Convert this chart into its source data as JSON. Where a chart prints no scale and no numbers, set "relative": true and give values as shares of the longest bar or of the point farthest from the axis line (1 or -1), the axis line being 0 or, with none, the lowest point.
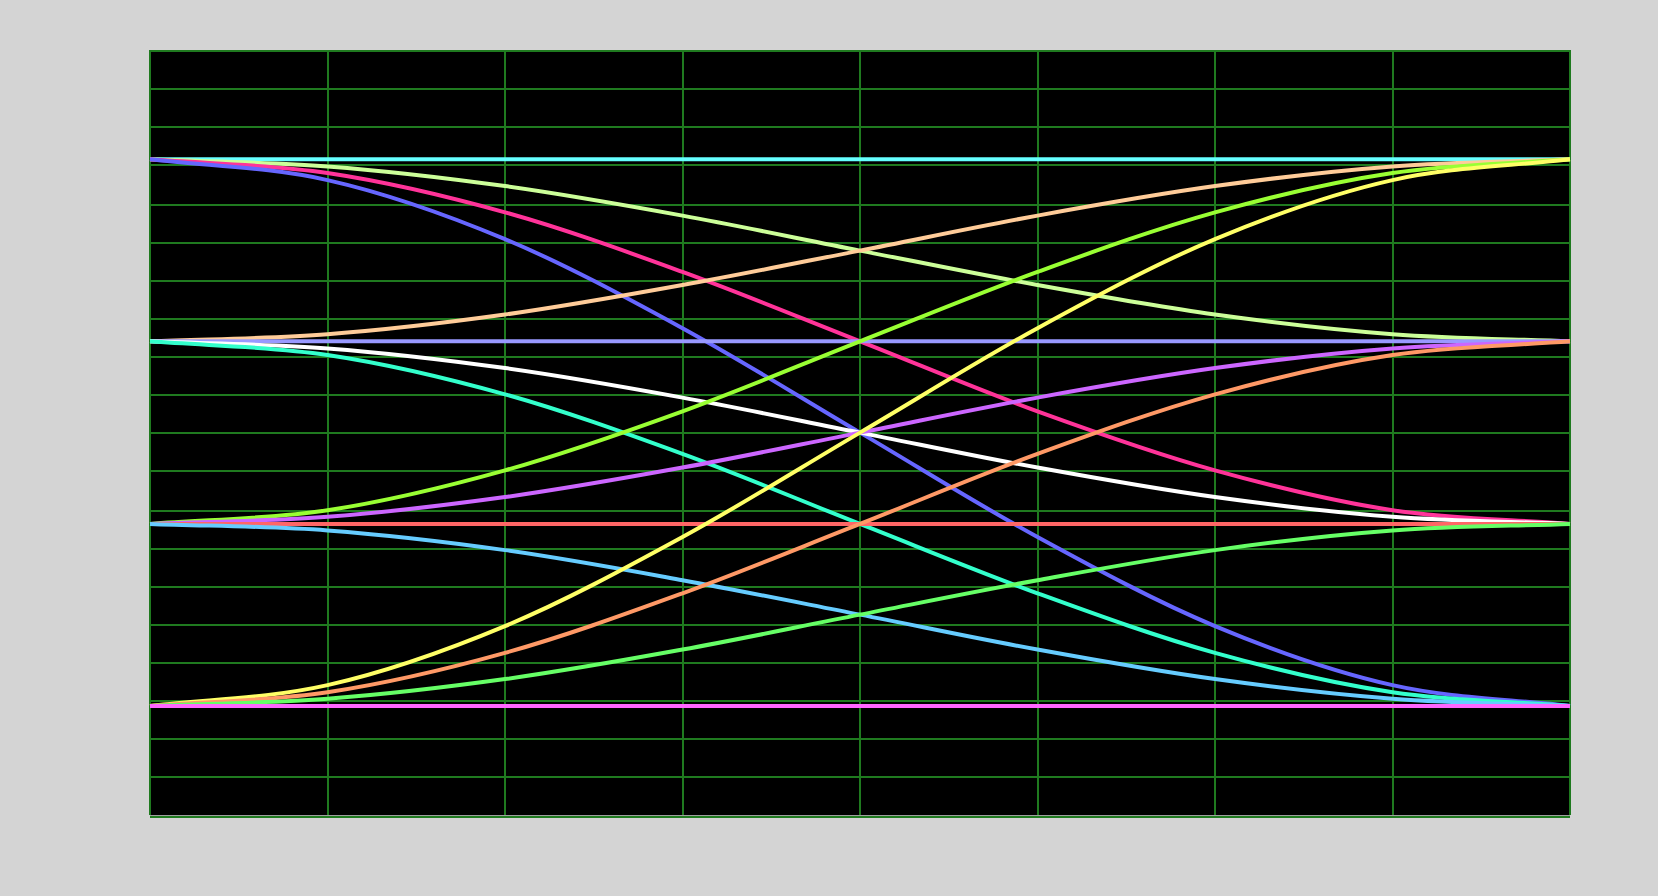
{
  "chart_data": {
    "type": "line",
    "relative": true,
    "grid": true,
    "legend": false,
    "marker": "none",
    "line_style": "solid",
    "categories": [
      null,
      null,
      null,
      null,
      null,
      null,
      null,
      null,
      null
    ],
    "series": [
      {
        "color": "#ff66ff",
        "values": [
          0,
          0,
          0,
          0,
          0,
          0,
          0,
          0,
          0
        ]
      },
      {
        "color": "#66ff66",
        "values": [
          0,
          0.013,
          0.049,
          0.103,
          0.167,
          0.23,
          0.285,
          0.321,
          0.333
        ]
      },
      {
        "color": "#ff9966",
        "values": [
          0,
          0.025,
          0.097,
          0.206,
          0.333,
          0.461,
          0.57,
          0.642,
          0.667
        ]
      },
      {
        "color": "#ffff66",
        "values": [
          0,
          0.038,
          0.146,
          0.309,
          0.5,
          0.691,
          0.854,
          0.962,
          1
        ]
      },
      {
        "color": "#66ccff",
        "values": [
          0.333,
          0.321,
          0.285,
          0.23,
          0.167,
          0.103,
          0.049,
          0.013,
          0
        ]
      },
      {
        "color": "#ff6666",
        "values": [
          0.333,
          0.333,
          0.333,
          0.333,
          0.333,
          0.333,
          0.333,
          0.333,
          0.333
        ]
      },
      {
        "color": "#cc66ff",
        "values": [
          0.333,
          0.346,
          0.382,
          0.436,
          0.5,
          0.564,
          0.618,
          0.654,
          0.667
        ]
      },
      {
        "color": "#99ff33",
        "values": [
          0.333,
          0.358,
          0.431,
          0.539,
          0.667,
          0.794,
          0.903,
          0.975,
          1
        ]
      },
      {
        "color": "#33ffcc",
        "values": [
          0.667,
          0.642,
          0.57,
          0.461,
          0.333,
          0.206,
          0.097,
          0.025,
          0
        ]
      },
      {
        "color": "#ffffff",
        "values": [
          0.667,
          0.654,
          0.618,
          0.564,
          0.5,
          0.436,
          0.382,
          0.346,
          0.333
        ]
      },
      {
        "color": "#9999ff",
        "values": [
          0.667,
          0.667,
          0.667,
          0.667,
          0.667,
          0.667,
          0.667,
          0.667,
          0.667
        ]
      },
      {
        "color": "#ffcc99",
        "values": [
          0.667,
          0.68,
          0.716,
          0.77,
          0.833,
          0.897,
          0.951,
          0.987,
          1
        ]
      },
      {
        "color": "#6666ff",
        "values": [
          1,
          0.962,
          0.854,
          0.691,
          0.5,
          0.309,
          0.146,
          0.038,
          0
        ]
      },
      {
        "color": "#ff3399",
        "values": [
          1,
          0.975,
          0.903,
          0.794,
          0.667,
          0.539,
          0.431,
          0.358,
          0.333
        ]
      },
      {
        "color": "#ccff99",
        "values": [
          1,
          0.987,
          0.951,
          0.897,
          0.833,
          0.77,
          0.716,
          0.68,
          0.667
        ]
      },
      {
        "color": "#66ffff",
        "values": [
          1,
          1,
          1,
          1,
          1,
          1,
          1,
          1,
          1
        ]
      }
    ]
  }
}
